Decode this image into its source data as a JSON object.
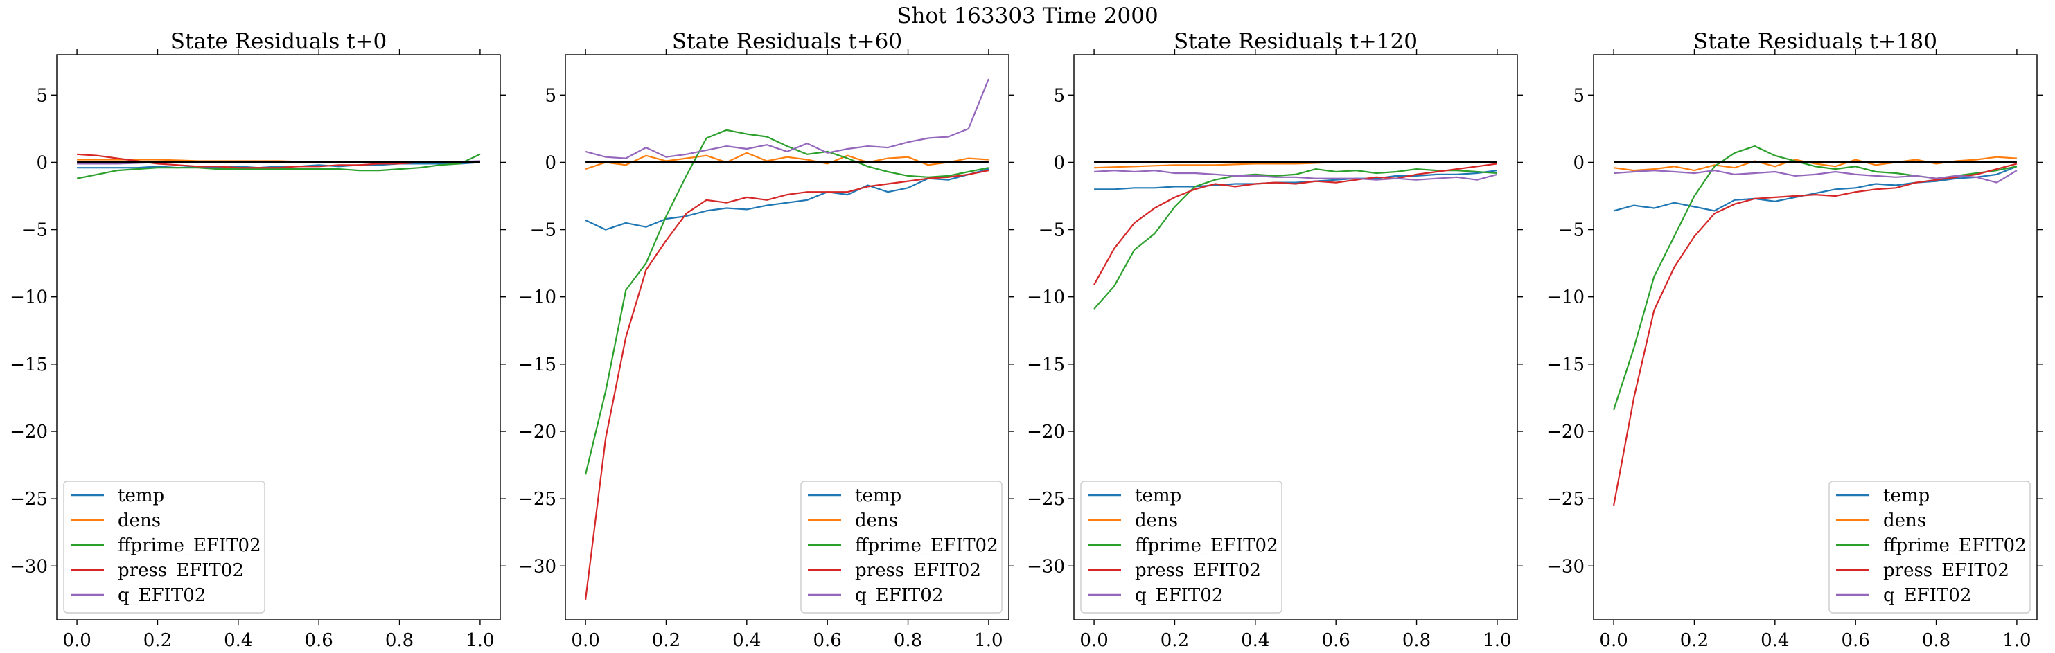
{
  "figure": {
    "suptitle": "Shot 163303   Time 2000"
  },
  "chart_data": [
    {
      "type": "line",
      "title": "State Residuals t+0",
      "xlim": [
        -0.05,
        1.05
      ],
      "ylim": [
        -34,
        8
      ],
      "xticks": [
        0.0,
        0.2,
        0.4,
        0.6,
        0.8,
        1.0
      ],
      "xtick_labels": [
        "0.0",
        "0.2",
        "0.4",
        "0.6",
        "0.8",
        "1.0"
      ],
      "yticks": [
        5,
        0,
        -5,
        -10,
        -15,
        -20,
        -25,
        -30
      ],
      "ytick_labels": [
        "5",
        "0",
        "−5",
        "−10",
        "−15",
        "−20",
        "−25",
        "−30"
      ],
      "legend_position": "lower-left",
      "reference_line": {
        "y": 0,
        "color": "#000000"
      },
      "series": [
        {
          "name": "temp",
          "color": "#1f77b4",
          "x": [
            0,
            0.05,
            0.1,
            0.15,
            0.2,
            0.25,
            0.3,
            0.35,
            0.4,
            0.45,
            0.5,
            0.55,
            0.6,
            0.65,
            0.7,
            0.75,
            0.8,
            0.85,
            0.9,
            0.95,
            1.0
          ],
          "y": [
            -0.4,
            -0.4,
            -0.4,
            -0.4,
            -0.3,
            -0.4,
            -0.3,
            -0.4,
            -0.3,
            -0.4,
            -0.3,
            -0.3,
            -0.2,
            -0.3,
            -0.2,
            -0.2,
            -0.1,
            -0.1,
            -0.1,
            -0.1,
            0.0
          ]
        },
        {
          "name": "dens",
          "color": "#ff7f0e",
          "x": [
            0,
            0.1,
            0.2,
            0.3,
            0.4,
            0.5,
            0.6,
            0.7,
            0.8,
            0.9,
            1.0
          ],
          "y": [
            0.2,
            0.2,
            0.2,
            0.1,
            0.1,
            0.1,
            0.0,
            0.0,
            0.0,
            0.0,
            0.0
          ]
        },
        {
          "name": "ffprime_EFIT02",
          "color": "#2ca02c",
          "x": [
            0,
            0.05,
            0.1,
            0.15,
            0.2,
            0.25,
            0.3,
            0.35,
            0.4,
            0.45,
            0.5,
            0.55,
            0.6,
            0.65,
            0.7,
            0.75,
            0.8,
            0.85,
            0.9,
            0.95,
            1.0
          ],
          "y": [
            -1.2,
            -0.9,
            -0.6,
            -0.5,
            -0.4,
            -0.4,
            -0.4,
            -0.5,
            -0.5,
            -0.5,
            -0.5,
            -0.5,
            -0.5,
            -0.5,
            -0.6,
            -0.6,
            -0.5,
            -0.4,
            -0.2,
            -0.1,
            0.6
          ]
        },
        {
          "name": "press_EFIT02",
          "color": "#d62728",
          "x": [
            0,
            0.05,
            0.1,
            0.15,
            0.2,
            0.25,
            0.3,
            0.35,
            0.4,
            0.45,
            0.5,
            0.55,
            0.6,
            0.65,
            0.7,
            0.75,
            0.8,
            0.85,
            0.9,
            0.95,
            1.0
          ],
          "y": [
            0.6,
            0.5,
            0.3,
            0.1,
            -0.1,
            -0.2,
            -0.3,
            -0.3,
            -0.4,
            -0.4,
            -0.4,
            -0.3,
            -0.3,
            -0.2,
            -0.2,
            -0.1,
            -0.1,
            0.0,
            0.0,
            0.0,
            0.0
          ]
        },
        {
          "name": "q_EFIT02",
          "color": "#9467bd",
          "x": [
            0,
            0.1,
            0.2,
            0.3,
            0.4,
            0.5,
            0.6,
            0.7,
            0.8,
            0.9,
            1.0
          ],
          "y": [
            -0.1,
            -0.1,
            0.0,
            0.0,
            0.0,
            0.0,
            0.0,
            0.0,
            0.0,
            0.0,
            0.1
          ]
        }
      ]
    },
    {
      "type": "line",
      "title": "State Residuals t+60",
      "xlim": [
        -0.05,
        1.05
      ],
      "ylim": [
        -34,
        8
      ],
      "xticks": [
        0.0,
        0.2,
        0.4,
        0.6,
        0.8,
        1.0
      ],
      "xtick_labels": [
        "0.0",
        "0.2",
        "0.4",
        "0.6",
        "0.8",
        "1.0"
      ],
      "yticks": [
        5,
        0,
        -5,
        -10,
        -15,
        -20,
        -25,
        -30
      ],
      "ytick_labels": [
        "5",
        "0",
        "−5",
        "−10",
        "−15",
        "−20",
        "−25",
        "−30"
      ],
      "legend_position": "lower-right",
      "reference_line": {
        "y": 0,
        "color": "#000000"
      },
      "series": [
        {
          "name": "temp",
          "color": "#1f77b4",
          "x": [
            0,
            0.05,
            0.1,
            0.15,
            0.2,
            0.25,
            0.3,
            0.35,
            0.4,
            0.45,
            0.5,
            0.55,
            0.6,
            0.65,
            0.7,
            0.75,
            0.8,
            0.85,
            0.9,
            0.95,
            1.0
          ],
          "y": [
            -4.3,
            -5.0,
            -4.5,
            -4.8,
            -4.2,
            -4.0,
            -3.6,
            -3.4,
            -3.5,
            -3.2,
            -3.0,
            -2.8,
            -2.2,
            -2.4,
            -1.7,
            -2.2,
            -1.9,
            -1.2,
            -1.3,
            -0.9,
            -0.5
          ]
        },
        {
          "name": "dens",
          "color": "#ff7f0e",
          "x": [
            0,
            0.05,
            0.1,
            0.15,
            0.2,
            0.25,
            0.3,
            0.35,
            0.4,
            0.45,
            0.5,
            0.55,
            0.6,
            0.65,
            0.7,
            0.75,
            0.8,
            0.85,
            0.9,
            0.95,
            1.0
          ],
          "y": [
            -0.5,
            0.0,
            -0.2,
            0.5,
            0.1,
            0.3,
            0.5,
            0.0,
            0.7,
            0.1,
            0.4,
            0.2,
            -0.1,
            0.5,
            0.0,
            0.3,
            0.4,
            -0.2,
            0.0,
            0.3,
            0.2
          ]
        },
        {
          "name": "ffprime_EFIT02",
          "color": "#2ca02c",
          "x": [
            0,
            0.05,
            0.1,
            0.15,
            0.2,
            0.25,
            0.3,
            0.35,
            0.4,
            0.45,
            0.5,
            0.55,
            0.6,
            0.65,
            0.7,
            0.75,
            0.8,
            0.85,
            0.9,
            0.95,
            1.0
          ],
          "y": [
            -23.2,
            -17.0,
            -9.5,
            -7.5,
            -4.0,
            -1.0,
            1.8,
            2.4,
            2.1,
            1.9,
            1.2,
            0.6,
            0.8,
            0.3,
            -0.3,
            -0.7,
            -1.0,
            -1.1,
            -1.0,
            -0.7,
            -0.4
          ]
        },
        {
          "name": "press_EFIT02",
          "color": "#d62728",
          "x": [
            0,
            0.05,
            0.1,
            0.15,
            0.2,
            0.25,
            0.3,
            0.35,
            0.4,
            0.45,
            0.5,
            0.55,
            0.6,
            0.65,
            0.7,
            0.75,
            0.8,
            0.85,
            0.9,
            0.95,
            1.0
          ],
          "y": [
            -32.5,
            -20.5,
            -13.0,
            -8.0,
            -5.8,
            -3.8,
            -2.8,
            -3.0,
            -2.6,
            -2.8,
            -2.4,
            -2.2,
            -2.2,
            -2.2,
            -1.8,
            -1.6,
            -1.4,
            -1.2,
            -1.1,
            -0.9,
            -0.6
          ]
        },
        {
          "name": "q_EFIT02",
          "color": "#9467bd",
          "x": [
            0,
            0.05,
            0.1,
            0.15,
            0.2,
            0.25,
            0.3,
            0.35,
            0.4,
            0.45,
            0.5,
            0.55,
            0.6,
            0.65,
            0.7,
            0.75,
            0.8,
            0.85,
            0.9,
            0.95,
            1.0
          ],
          "y": [
            0.8,
            0.4,
            0.3,
            1.1,
            0.4,
            0.6,
            0.9,
            1.2,
            1.0,
            1.3,
            0.8,
            1.4,
            0.7,
            1.0,
            1.2,
            1.1,
            1.5,
            1.8,
            1.9,
            2.5,
            6.2
          ]
        }
      ]
    },
    {
      "type": "line",
      "title": "State Residuals t+120",
      "xlim": [
        -0.05,
        1.05
      ],
      "ylim": [
        -34,
        8
      ],
      "xticks": [
        0.0,
        0.2,
        0.4,
        0.6,
        0.8,
        1.0
      ],
      "xtick_labels": [
        "0.0",
        "0.2",
        "0.4",
        "0.6",
        "0.8",
        "1.0"
      ],
      "yticks": [
        5,
        0,
        -5,
        -10,
        -15,
        -20,
        -25,
        -30
      ],
      "ytick_labels": [
        "5",
        "0",
        "−5",
        "−10",
        "−15",
        "−20",
        "−25",
        "−30"
      ],
      "legend_position": "lower-left",
      "reference_line": {
        "y": 0,
        "color": "#000000"
      },
      "series": [
        {
          "name": "temp",
          "color": "#1f77b4",
          "x": [
            0,
            0.05,
            0.1,
            0.15,
            0.2,
            0.25,
            0.3,
            0.35,
            0.4,
            0.45,
            0.5,
            0.55,
            0.6,
            0.65,
            0.7,
            0.75,
            0.8,
            0.85,
            0.9,
            0.95,
            1.0
          ],
          "y": [
            -2.0,
            -2.0,
            -1.9,
            -1.9,
            -1.8,
            -1.8,
            -1.7,
            -1.6,
            -1.6,
            -1.5,
            -1.5,
            -1.4,
            -1.3,
            -1.2,
            -1.2,
            -1.0,
            -1.0,
            -0.9,
            -0.9,
            -0.8,
            -0.6
          ]
        },
        {
          "name": "dens",
          "color": "#ff7f0e",
          "x": [
            0,
            0.1,
            0.2,
            0.3,
            0.4,
            0.5,
            0.6,
            0.7,
            0.8,
            0.9,
            1.0
          ],
          "y": [
            -0.4,
            -0.3,
            -0.2,
            -0.2,
            -0.1,
            -0.1,
            0.0,
            0.0,
            0.0,
            0.0,
            0.0
          ]
        },
        {
          "name": "ffprime_EFIT02",
          "color": "#2ca02c",
          "x": [
            0,
            0.05,
            0.1,
            0.15,
            0.2,
            0.25,
            0.3,
            0.35,
            0.4,
            0.45,
            0.5,
            0.55,
            0.6,
            0.65,
            0.7,
            0.75,
            0.8,
            0.85,
            0.9,
            0.95,
            1.0
          ],
          "y": [
            -10.9,
            -9.2,
            -6.5,
            -5.3,
            -3.3,
            -1.8,
            -1.3,
            -1.0,
            -0.9,
            -1.0,
            -0.9,
            -0.5,
            -0.7,
            -0.6,
            -0.8,
            -0.7,
            -0.5,
            -0.6,
            -0.6,
            -0.7,
            -0.8
          ]
        },
        {
          "name": "press_EFIT02",
          "color": "#d62728",
          "x": [
            0,
            0.05,
            0.1,
            0.15,
            0.2,
            0.25,
            0.3,
            0.35,
            0.4,
            0.45,
            0.5,
            0.55,
            0.6,
            0.65,
            0.7,
            0.75,
            0.8,
            0.85,
            0.9,
            0.95,
            1.0
          ],
          "y": [
            -9.1,
            -6.4,
            -4.5,
            -3.4,
            -2.6,
            -2.0,
            -1.6,
            -1.8,
            -1.6,
            -1.5,
            -1.6,
            -1.4,
            -1.5,
            -1.3,
            -1.1,
            -1.2,
            -0.9,
            -0.7,
            -0.5,
            -0.3,
            -0.1
          ]
        },
        {
          "name": "q_EFIT02",
          "color": "#9467bd",
          "x": [
            0,
            0.05,
            0.1,
            0.15,
            0.2,
            0.25,
            0.3,
            0.35,
            0.4,
            0.45,
            0.5,
            0.55,
            0.6,
            0.65,
            0.7,
            0.75,
            0.8,
            0.85,
            0.9,
            0.95,
            1.0
          ],
          "y": [
            -0.7,
            -0.6,
            -0.7,
            -0.6,
            -0.8,
            -0.8,
            -0.9,
            -1.0,
            -1.0,
            -1.1,
            -1.1,
            -1.2,
            -1.2,
            -1.2,
            -1.3,
            -1.2,
            -1.3,
            -1.2,
            -1.1,
            -1.3,
            -0.9
          ]
        }
      ]
    },
    {
      "type": "line",
      "title": "State Residuals t+180",
      "xlim": [
        -0.05,
        1.05
      ],
      "ylim": [
        -34,
        8
      ],
      "xticks": [
        0.0,
        0.2,
        0.4,
        0.6,
        0.8,
        1.0
      ],
      "xtick_labels": [
        "0.0",
        "0.2",
        "0.4",
        "0.6",
        "0.8",
        "1.0"
      ],
      "yticks": [
        5,
        0,
        -5,
        -10,
        -15,
        -20,
        -25,
        -30
      ],
      "ytick_labels": [
        "5",
        "0",
        "−5",
        "−10",
        "−15",
        "−20",
        "−25",
        "−30"
      ],
      "legend_position": "lower-right",
      "reference_line": {
        "y": 0,
        "color": "#000000"
      },
      "series": [
        {
          "name": "temp",
          "color": "#1f77b4",
          "x": [
            0,
            0.05,
            0.1,
            0.15,
            0.2,
            0.25,
            0.3,
            0.35,
            0.4,
            0.45,
            0.5,
            0.55,
            0.6,
            0.65,
            0.7,
            0.75,
            0.8,
            0.85,
            0.9,
            0.95,
            1.0
          ],
          "y": [
            -3.6,
            -3.2,
            -3.4,
            -3.0,
            -3.3,
            -3.6,
            -2.8,
            -2.7,
            -2.9,
            -2.6,
            -2.3,
            -2.0,
            -1.9,
            -1.6,
            -1.7,
            -1.5,
            -1.4,
            -1.2,
            -1.1,
            -0.9,
            -0.3
          ]
        },
        {
          "name": "dens",
          "color": "#ff7f0e",
          "x": [
            0,
            0.05,
            0.1,
            0.15,
            0.2,
            0.25,
            0.3,
            0.35,
            0.4,
            0.45,
            0.5,
            0.55,
            0.6,
            0.65,
            0.7,
            0.75,
            0.8,
            0.85,
            0.9,
            0.95,
            1.0
          ],
          "y": [
            -0.4,
            -0.6,
            -0.5,
            -0.3,
            -0.6,
            -0.2,
            -0.4,
            0.1,
            -0.3,
            0.2,
            -0.1,
            -0.3,
            0.2,
            -0.2,
            0.0,
            0.2,
            -0.1,
            0.1,
            0.2,
            0.4,
            0.3
          ]
        },
        {
          "name": "ffprime_EFIT02",
          "color": "#2ca02c",
          "x": [
            0,
            0.05,
            0.1,
            0.15,
            0.2,
            0.25,
            0.3,
            0.35,
            0.4,
            0.45,
            0.5,
            0.55,
            0.6,
            0.65,
            0.7,
            0.75,
            0.8,
            0.85,
            0.9,
            0.95,
            1.0
          ],
          "y": [
            -18.4,
            -13.8,
            -8.5,
            -5.5,
            -2.5,
            -0.3,
            0.7,
            1.2,
            0.5,
            0.1,
            -0.3,
            -0.5,
            -0.3,
            -0.7,
            -0.8,
            -1.0,
            -1.2,
            -1.0,
            -0.8,
            -0.6,
            -0.3
          ]
        },
        {
          "name": "press_EFIT02",
          "color": "#d62728",
          "x": [
            0,
            0.05,
            0.1,
            0.15,
            0.2,
            0.25,
            0.3,
            0.35,
            0.4,
            0.45,
            0.5,
            0.55,
            0.6,
            0.65,
            0.7,
            0.75,
            0.8,
            0.85,
            0.9,
            0.95,
            1.0
          ],
          "y": [
            -25.5,
            -17.5,
            -11.0,
            -7.8,
            -5.5,
            -3.8,
            -3.1,
            -2.7,
            -2.6,
            -2.5,
            -2.4,
            -2.5,
            -2.2,
            -2.0,
            -1.9,
            -1.5,
            -1.3,
            -1.1,
            -0.9,
            -0.5,
            -0.1
          ]
        },
        {
          "name": "q_EFIT02",
          "color": "#9467bd",
          "x": [
            0,
            0.05,
            0.1,
            0.15,
            0.2,
            0.25,
            0.3,
            0.35,
            0.4,
            0.45,
            0.5,
            0.55,
            0.6,
            0.65,
            0.7,
            0.75,
            0.8,
            0.85,
            0.9,
            0.95,
            1.0
          ],
          "y": [
            -0.8,
            -0.7,
            -0.6,
            -0.7,
            -0.8,
            -0.6,
            -0.9,
            -0.8,
            -0.7,
            -1.0,
            -0.9,
            -0.7,
            -0.9,
            -1.0,
            -1.1,
            -1.0,
            -1.2,
            -1.0,
            -1.1,
            -1.5,
            -0.6
          ]
        }
      ]
    }
  ]
}
